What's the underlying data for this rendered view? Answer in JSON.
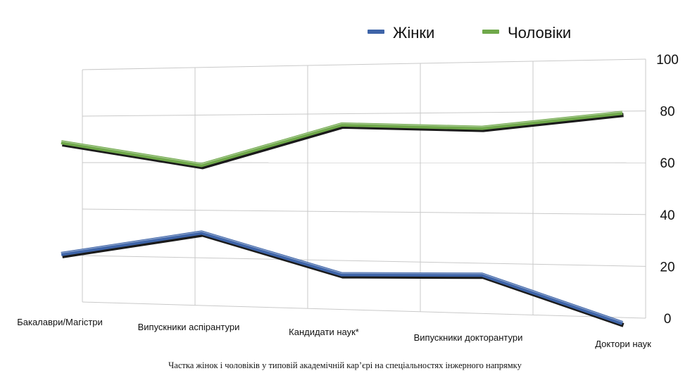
{
  "chart_data": {
    "type": "line",
    "categories": [
      "Бакалаври/Магістри",
      "Випускники аспірантури",
      "Кандидати наук*",
      "Випускники докторантури",
      "Доктори наук"
    ],
    "series": [
      {
        "name": "Жінки",
        "color": "#3e64a8",
        "values": [
          26,
          36,
          20,
          21,
          4
        ]
      },
      {
        "name": "Чоловіки",
        "color": "#6fa84a",
        "values": [
          74,
          64,
          80,
          78,
          83
        ]
      }
    ],
    "ylim": [
      0,
      100
    ],
    "yticks": [
      "0",
      "20",
      "40",
      "60",
      "80",
      "100"
    ],
    "grid": true,
    "legend": "top",
    "view": "3d-perspective"
  },
  "caption": "Частка жінок і чоловіків у типовій академічній кар’єрі на спеціальностях інжерного напрямку"
}
